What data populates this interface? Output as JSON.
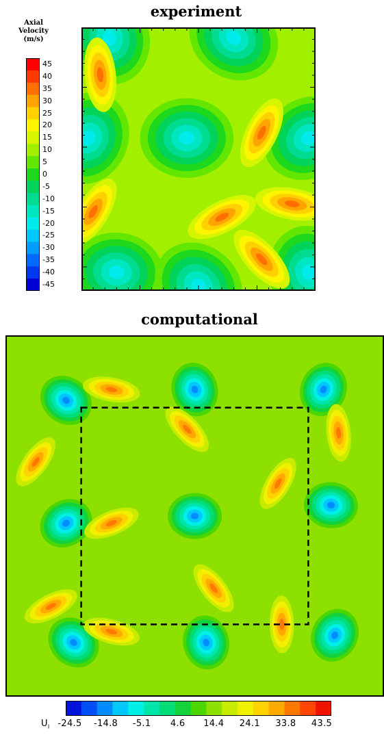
{
  "chart_data": [
    {
      "type": "heatmap",
      "title": "experiment",
      "colorbar": {
        "title_lines": [
          "Axial",
          "Velocity",
          "(m/s)"
        ],
        "orientation": "vertical",
        "placement": "left",
        "tick_labels": [
          "45",
          "40",
          "35",
          "30",
          "25",
          "20",
          "15",
          "10",
          "5",
          "0",
          "-5",
          "-10",
          "-15",
          "-20",
          "-25",
          "-30",
          "-35",
          "-40",
          "-45"
        ],
        "colors": [
          "#ff0000",
          "#ff3a00",
          "#ff7000",
          "#ffa300",
          "#ffd100",
          "#fff500",
          "#d5f500",
          "#a2f000",
          "#63e600",
          "#1ed81e",
          "#00d25a",
          "#00dc8f",
          "#00e6c0",
          "#00ebeb",
          "#00c8ff",
          "#009dff",
          "#0069ff",
          "#0038f0",
          "#0000d2"
        ]
      },
      "range": [
        -45,
        45
      ],
      "grid": false,
      "features": [
        {
          "kind": "low",
          "x": 0.45,
          "y": 0.42
        },
        {
          "kind": "low",
          "x": 0.65,
          "y": 0.04
        },
        {
          "kind": "low",
          "x": 0.12,
          "y": 0.04
        },
        {
          "kind": "low",
          "x": 0.03,
          "y": 0.42
        },
        {
          "kind": "low",
          "x": 0.97,
          "y": 0.42
        },
        {
          "kind": "low",
          "x": 0.15,
          "y": 0.93
        },
        {
          "kind": "low",
          "x": 0.5,
          "y": 0.98
        },
        {
          "kind": "low",
          "x": 0.97,
          "y": 0.93
        },
        {
          "kind": "high",
          "x": 0.77,
          "y": 0.4
        },
        {
          "kind": "high",
          "x": 0.6,
          "y": 0.72
        },
        {
          "kind": "high",
          "x": 0.9,
          "y": 0.67
        },
        {
          "kind": "high",
          "x": 0.77,
          "y": 0.88
        },
        {
          "kind": "high",
          "x": 0.08,
          "y": 0.18
        },
        {
          "kind": "high",
          "x": 0.05,
          "y": 0.7
        }
      ]
    },
    {
      "type": "heatmap",
      "title": "computational",
      "colorbar": {
        "label": "U",
        "orientation": "horizontal",
        "placement": "bottom",
        "tick_labels": [
          "-24.5",
          "-14.8",
          "-5.1",
          "4.6",
          "14.4",
          "24.1",
          "33.8",
          "43.5"
        ],
        "colors": [
          "#0014dc",
          "#0050f5",
          "#008cff",
          "#00c8ff",
          "#00f0e6",
          "#00e6aa",
          "#00dc78",
          "#14d23c",
          "#4cd600",
          "#8ee000",
          "#c8ec00",
          "#f0f000",
          "#ffd200",
          "#ffaa00",
          "#ff7800",
          "#ff4600",
          "#f01400"
        ]
      },
      "range": [
        -24.5,
        43.5
      ],
      "grid": false,
      "dashed_box": true,
      "features": [
        {
          "kind": "low",
          "x": 0.5,
          "y": 0.5
        },
        {
          "kind": "low",
          "x": 0.16,
          "y": 0.18
        },
        {
          "kind": "low",
          "x": 0.5,
          "y": 0.15
        },
        {
          "kind": "low",
          "x": 0.84,
          "y": 0.15
        },
        {
          "kind": "low",
          "x": 0.16,
          "y": 0.52
        },
        {
          "kind": "low",
          "x": 0.86,
          "y": 0.47
        },
        {
          "kind": "low",
          "x": 0.18,
          "y": 0.85
        },
        {
          "kind": "low",
          "x": 0.53,
          "y": 0.85
        },
        {
          "kind": "low",
          "x": 0.87,
          "y": 0.83
        },
        {
          "kind": "high",
          "x": 0.12,
          "y": 0.75
        },
        {
          "kind": "high",
          "x": 0.28,
          "y": 0.15
        },
        {
          "kind": "high",
          "x": 0.48,
          "y": 0.26
        },
        {
          "kind": "high",
          "x": 0.88,
          "y": 0.27
        },
        {
          "kind": "high",
          "x": 0.72,
          "y": 0.41
        },
        {
          "kind": "high",
          "x": 0.28,
          "y": 0.52
        },
        {
          "kind": "high",
          "x": 0.28,
          "y": 0.82
        },
        {
          "kind": "high",
          "x": 0.55,
          "y": 0.7
        },
        {
          "kind": "high",
          "x": 0.73,
          "y": 0.8
        },
        {
          "kind": "high",
          "x": 0.08,
          "y": 0.35
        }
      ]
    }
  ]
}
